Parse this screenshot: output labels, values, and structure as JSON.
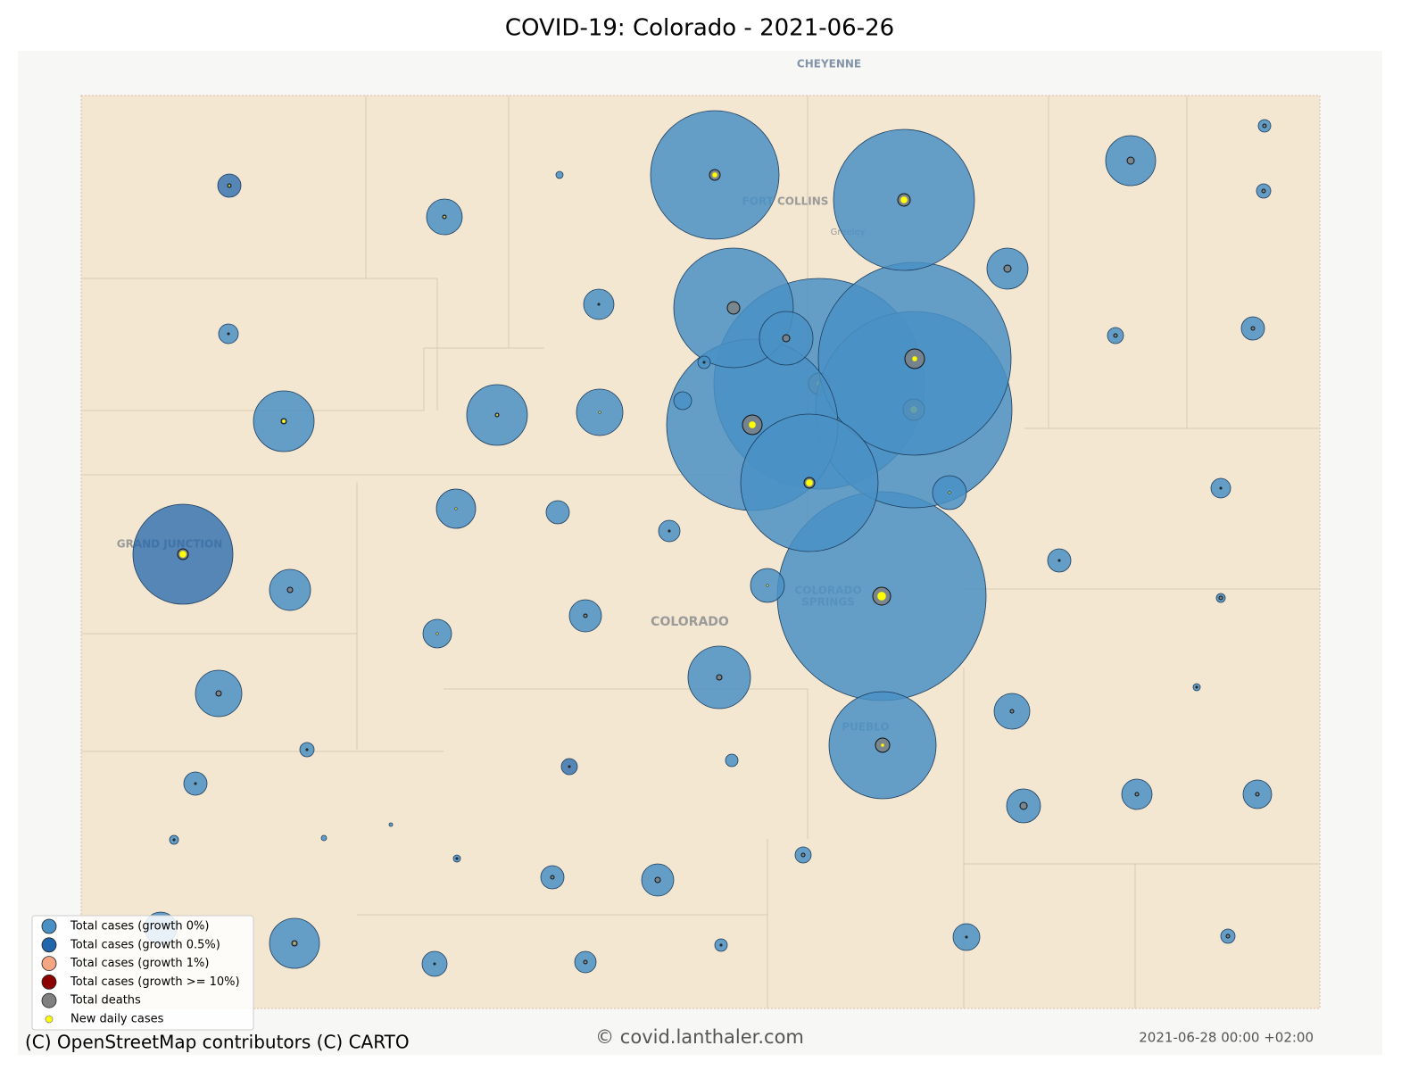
{
  "title": "COVID-19: Colorado - 2021-06-26",
  "map_labels": {
    "cheyenne": "CHEYENNE",
    "fort_collins": "FORT COLLINS",
    "greeley": "Greeley",
    "colorado": "COLORADO",
    "colorado_springs": [
      "COLORADO",
      "SPRINGS"
    ],
    "pueblo": "PUEBLO",
    "grand_junction": "GRAND JUNCTION"
  },
  "legend": [
    {
      "label": "Total cases (growth 0%)",
      "color": "#4a90c4"
    },
    {
      "label": "Total cases (growth 0.5%)",
      "color": "#2166ac"
    },
    {
      "label": "Total cases (growth 1%)",
      "color": "#f4a582"
    },
    {
      "label": "Total cases (growth >= 10%)",
      "color": "#8b0000"
    },
    {
      "label": "Total deaths",
      "color": "#808080"
    },
    {
      "label": "New daily cases",
      "color": "#ffff00"
    }
  ],
  "attribution": "(C) OpenStreetMap contributors (C) CARTO",
  "watermark": "© covid.lanthaler.com",
  "timestamp": "2021-06-28 00:00 +02:00"
}
